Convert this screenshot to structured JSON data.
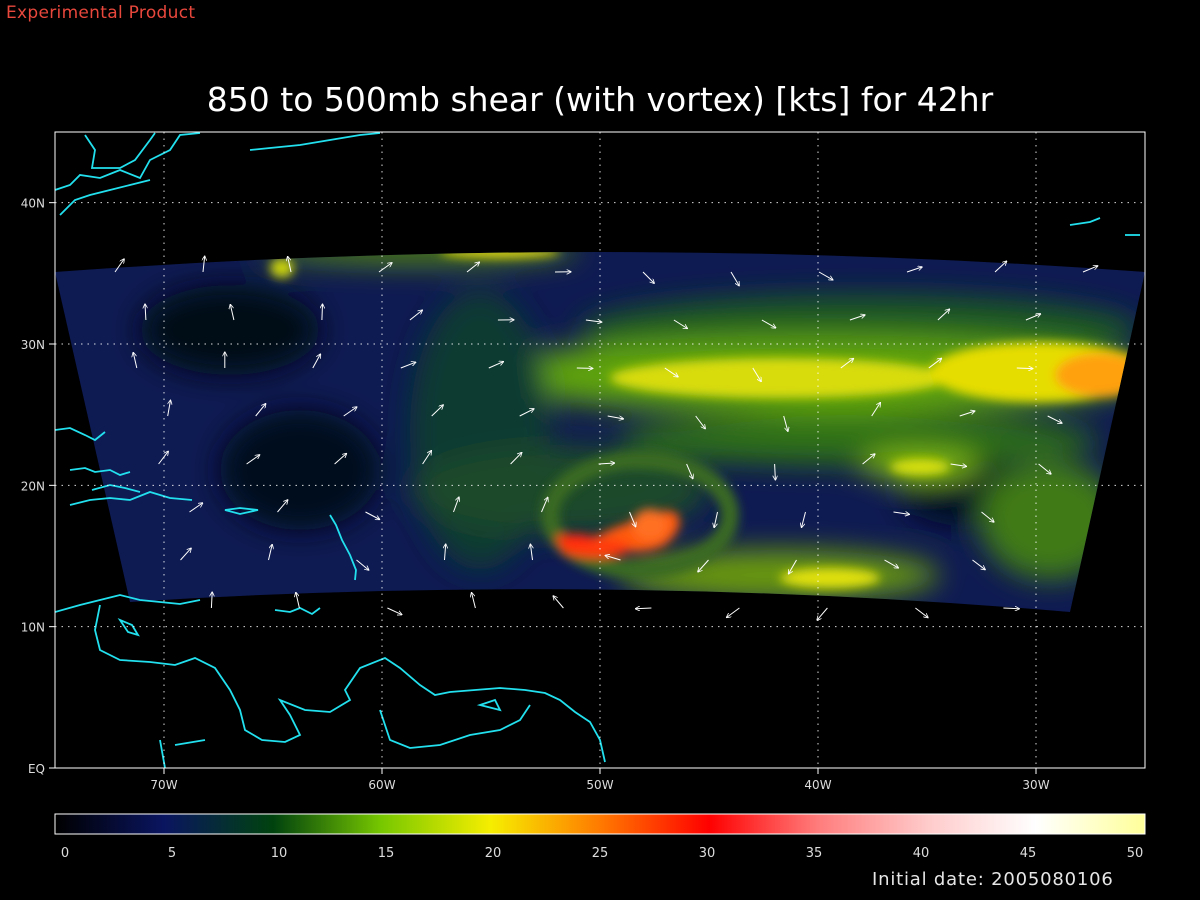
{
  "header": {
    "experimental": "Experimental Product",
    "title": "850 to 500mb shear (with vortex) [kts] for 42hr"
  },
  "map": {
    "lon_range": [
      -75,
      -25
    ],
    "lat_range": [
      0,
      45
    ],
    "lon_ticks": [
      {
        "value": -70,
        "label": "70W"
      },
      {
        "value": -60,
        "label": "60W"
      },
      {
        "value": -50,
        "label": "50W"
      },
      {
        "value": -40,
        "label": "40W"
      },
      {
        "value": -30,
        "label": "30W"
      }
    ],
    "lat_ticks": [
      {
        "value": 0,
        "label": "EQ"
      },
      {
        "value": 10,
        "label": "10N"
      },
      {
        "value": 20,
        "label": "20N"
      },
      {
        "value": 30,
        "label": "30N"
      },
      {
        "value": 40,
        "label": "40N"
      }
    ],
    "grid": true,
    "coastline_color": "#22e0ee",
    "vector_color": "#ffffff"
  },
  "colorbar": {
    "min": 0,
    "max": 50,
    "labels": [
      "0",
      "5",
      "10",
      "15",
      "20",
      "25",
      "30",
      "35",
      "40",
      "45",
      "50"
    ],
    "stops": [
      "#000000",
      "#0a1560",
      "#00420e",
      "#78c800",
      "#f6ee00",
      "#ff7a00",
      "#ff0000",
      "#ff7c7c",
      "#ffcaca",
      "#ffffff",
      "#ffff9a"
    ]
  },
  "footer": {
    "initial_date": "Initial date: 2005080106"
  }
}
